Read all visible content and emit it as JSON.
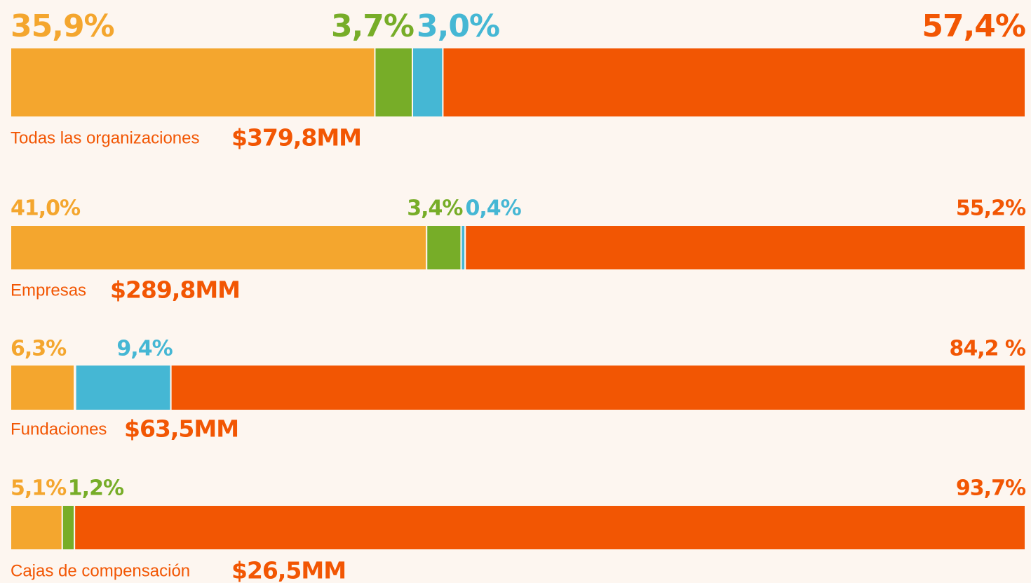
{
  "chart_data": {
    "type": "stacked_bar_100",
    "colors": [
      "#f4a62e",
      "#77ad28",
      "#45b7d4",
      "#f25603"
    ],
    "label_color": "#f25603",
    "rows": [
      {
        "label": "Todas las organizaciones",
        "total": "$379,8MM",
        "values": [
          35.9,
          3.7,
          3.0,
          57.4
        ],
        "value_labels": [
          "35,9%",
          "3,7%",
          "3,0%",
          "57,4%"
        ]
      },
      {
        "label": "Empresas",
        "total": "$289,8MM",
        "values": [
          41.0,
          3.4,
          0.4,
          55.2
        ],
        "value_labels": [
          "41,0%",
          "3,4%",
          "0,4%",
          "55,2%"
        ]
      },
      {
        "label": "Fundaciones",
        "total": "$63,5MM",
        "values": [
          6.3,
          0.1,
          9.4,
          84.2
        ],
        "value_labels": [
          "6,3%",
          null,
          "9,4%",
          "84,2 %"
        ]
      },
      {
        "label": "Cajas de compensación",
        "total": "$26,5MM",
        "values": [
          5.1,
          1.2,
          null,
          93.7
        ],
        "value_labels": [
          "5,1%",
          "1,2%",
          null,
          "93,7%"
        ]
      }
    ]
  }
}
